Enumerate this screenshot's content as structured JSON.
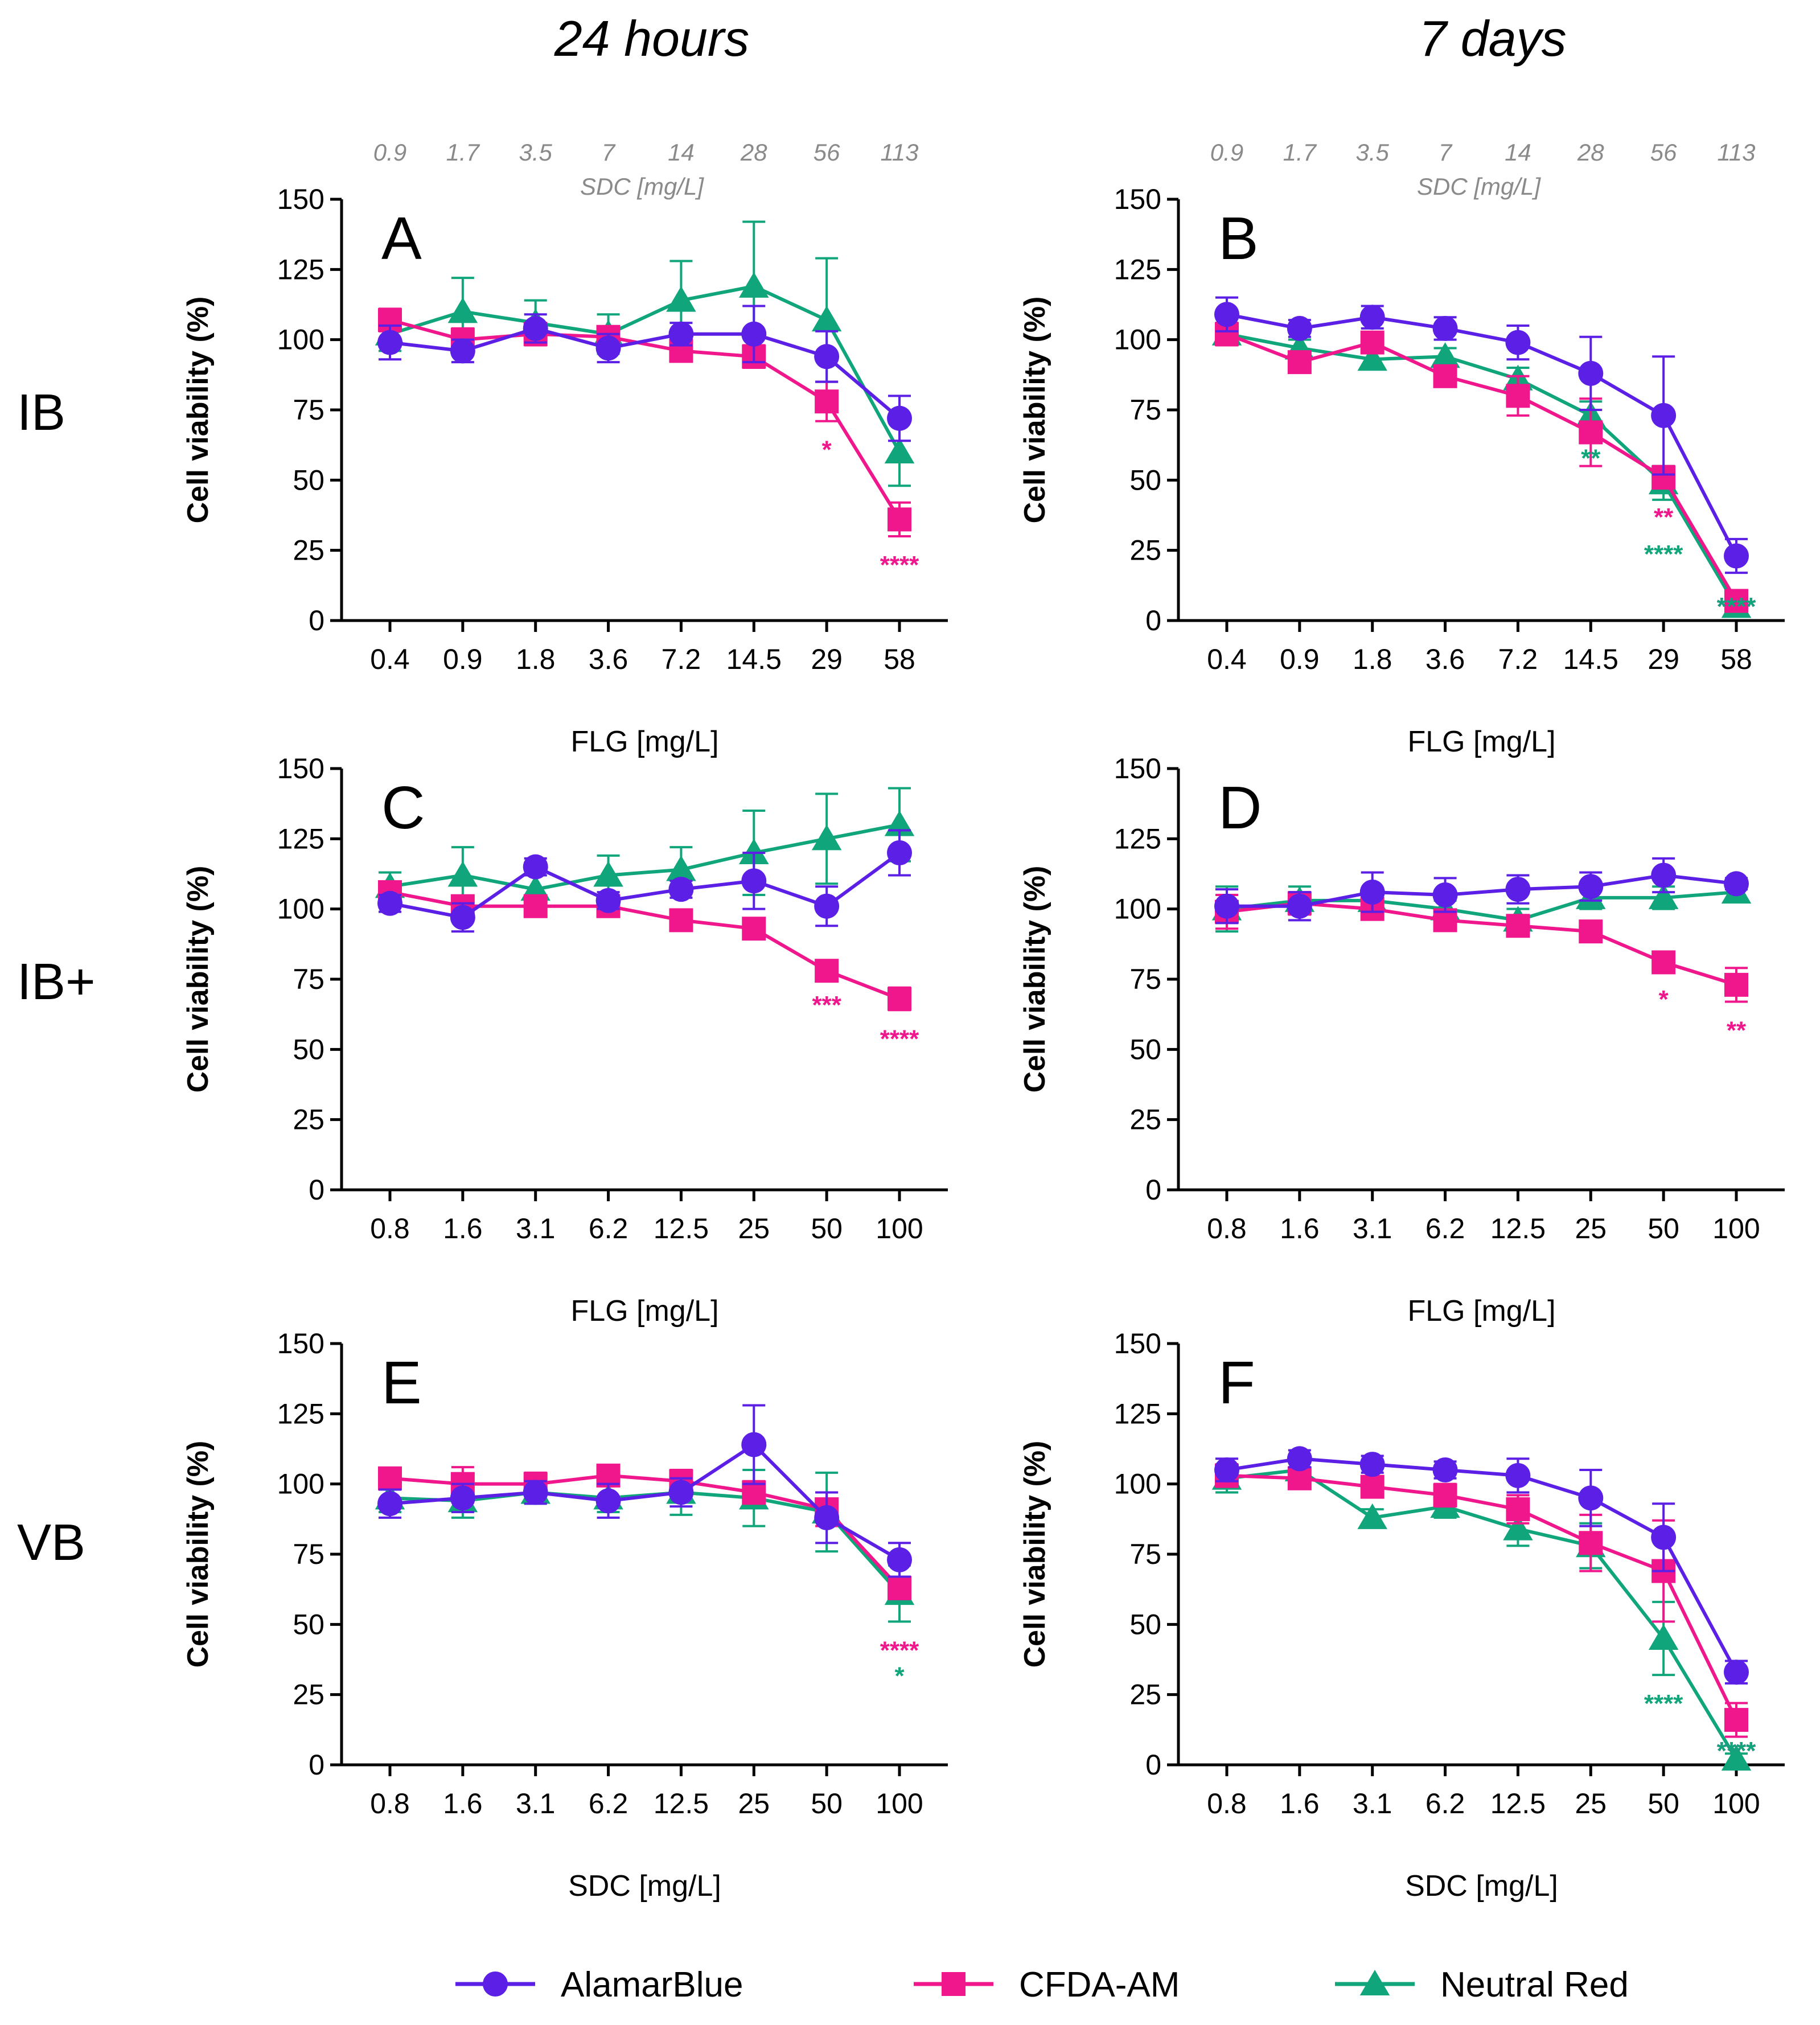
{
  "chart_data": {
    "type": "line",
    "column_titles": [
      "24 hours",
      "7 days"
    ],
    "row_labels": [
      "IB",
      "IB+",
      "VB"
    ],
    "legend": [
      {
        "name": "AlamarBlue",
        "color": "#5B1FE6",
        "marker": "circle"
      },
      {
        "name": "CFDA-AM",
        "color": "#F0168C",
        "marker": "square"
      },
      {
        "name": "Neutral Red",
        "color": "#10A57A",
        "marker": "triangle"
      }
    ],
    "panels": [
      {
        "letter": "A",
        "time": "24 hours",
        "cell": "IB",
        "ylabel": "Cell viability (%)",
        "ylim": [
          0,
          150
        ],
        "yticks": [
          0,
          25,
          50,
          75,
          100,
          125,
          150
        ],
        "xlabel": "FLG [mg/L]",
        "categories": [
          "0.4",
          "0.9",
          "1.8",
          "3.6",
          "7.2",
          "14.5",
          "29",
          "58"
        ],
        "secondary_axis": {
          "label": "SDC [mg/L]",
          "ticks": [
            "0.9",
            "1.7",
            "3.5",
            "7",
            "14",
            "28",
            "56",
            "113"
          ]
        },
        "series": [
          {
            "name": "AlamarBlue",
            "values": [
              99,
              96,
              104,
              97,
              102,
              102,
              94,
              72
            ],
            "err": [
              6,
              4,
              5,
              5,
              4,
              10,
              9,
              8
            ]
          },
          {
            "name": "CFDA-AM",
            "values": [
              107,
              100,
              102,
              101,
              96,
              94,
              78,
              36
            ],
            "err": [
              4,
              4,
              4,
              3,
              3,
              4,
              7,
              6
            ]
          },
          {
            "name": "Neutral Red",
            "values": [
              102,
              110,
              106,
              102,
              114,
              119,
              107,
              60
            ],
            "err": [
              6,
              12,
              8,
              7,
              14,
              23,
              22,
              12
            ]
          }
        ],
        "significance": [
          {
            "series": "CFDA-AM",
            "index": 6,
            "text": "*"
          },
          {
            "series": "CFDA-AM",
            "index": 7,
            "text": "****"
          }
        ]
      },
      {
        "letter": "B",
        "time": "7 days",
        "cell": "IB",
        "ylabel": "Cell viability (%)",
        "ylim": [
          0,
          150
        ],
        "yticks": [
          0,
          25,
          50,
          75,
          100,
          125,
          150
        ],
        "xlabel": "FLG [mg/L]",
        "categories": [
          "0.4",
          "0.9",
          "1.8",
          "3.6",
          "7.2",
          "14.5",
          "29",
          "58"
        ],
        "secondary_axis": {
          "label": "SDC [mg/L]",
          "ticks": [
            "0.9",
            "1.7",
            "3.5",
            "7",
            "14",
            "28",
            "56",
            "113"
          ]
        },
        "series": [
          {
            "name": "AlamarBlue",
            "values": [
              109,
              104,
              108,
              104,
              99,
              88,
              73,
              23
            ],
            "err": [
              6,
              3,
              4,
              4,
              6,
              13,
              21,
              6
            ]
          },
          {
            "name": "CFDA-AM",
            "values": [
              102,
              92,
              99,
              87,
              80,
              67,
              51,
              7
            ],
            "err": [
              4,
              3,
              3,
              3,
              7,
              12,
              4,
              2
            ]
          },
          {
            "name": "Neutral Red",
            "values": [
              102,
              97,
              93,
              94,
              86,
              73,
              49,
              5
            ],
            "err": [
              4,
              3,
              3,
              3,
              4,
              5,
              6,
              2
            ]
          }
        ],
        "significance": [
          {
            "series": "AlamarBlue",
            "index": 7,
            "text": "****"
          },
          {
            "series": "Neutral Red",
            "index": 5,
            "text": "**"
          },
          {
            "series": "CFDA-AM",
            "index": 6,
            "text": "**"
          },
          {
            "series": "Neutral Red",
            "index": 6,
            "text": "****"
          },
          {
            "series": "CFDA-AM",
            "index": 7,
            "text": "****"
          },
          {
            "series": "Neutral Red",
            "index": 7,
            "text": "****"
          }
        ]
      },
      {
        "letter": "C",
        "time": "24 hours",
        "cell": "IB+",
        "ylabel": "Cell viability (%)",
        "ylim": [
          0,
          150
        ],
        "yticks": [
          0,
          25,
          50,
          75,
          100,
          125,
          150
        ],
        "xlabel": "FLG [mg/L]",
        "categories": [
          "0.8",
          "1.6",
          "3.1",
          "6.2",
          "12.5",
          "25",
          "50",
          "100"
        ],
        "series": [
          {
            "name": "AlamarBlue",
            "values": [
              102,
              97,
              115,
              103,
              107,
              110,
              101,
              120
            ],
            "err": [
              3,
              5,
              3,
              3,
              3,
              10,
              7,
              8
            ]
          },
          {
            "name": "CFDA-AM",
            "values": [
              106,
              101,
              101,
              101,
              96,
              93,
              78,
              68
            ],
            "err": [
              3,
              3,
              3,
              3,
              2,
              2,
              2,
              4
            ]
          },
          {
            "name": "Neutral Red",
            "values": [
              108,
              112,
              107,
              112,
              114,
              120,
              125,
              130
            ],
            "err": [
              5,
              10,
              5,
              7,
              8,
              15,
              16,
              13
            ]
          }
        ],
        "significance": [
          {
            "series": "CFDA-AM",
            "index": 6,
            "text": "***"
          },
          {
            "series": "CFDA-AM",
            "index": 7,
            "text": "****"
          }
        ]
      },
      {
        "letter": "D",
        "time": "7 days",
        "cell": "IB+",
        "ylabel": "Cell viability (%)",
        "ylim": [
          0,
          150
        ],
        "yticks": [
          0,
          25,
          50,
          75,
          100,
          125,
          150
        ],
        "xlabel": "FLG [mg/L]",
        "categories": [
          "0.8",
          "1.6",
          "3.1",
          "6.2",
          "12.5",
          "25",
          "50",
          "100"
        ],
        "series": [
          {
            "name": "AlamarBlue",
            "values": [
              101,
              101,
              106,
              105,
              107,
              108,
              112,
              109
            ],
            "err": [
              6,
              5,
              7,
              6,
              5,
              5,
              6,
              2
            ]
          },
          {
            "name": "CFDA-AM",
            "values": [
              99,
              102,
              100,
              96,
              94,
              92,
              81,
              73
            ],
            "err": [
              6,
              4,
              3,
              3,
              3,
              2,
              3,
              6
            ]
          },
          {
            "name": "Neutral Red",
            "values": [
              100,
              103,
              103,
              100,
              96,
              104,
              104,
              106
            ],
            "err": [
              8,
              5,
              4,
              3,
              4,
              4,
              4,
              3
            ]
          }
        ],
        "significance": [
          {
            "series": "CFDA-AM",
            "index": 6,
            "text": "*"
          },
          {
            "series": "CFDA-AM",
            "index": 7,
            "text": "**"
          }
        ]
      },
      {
        "letter": "E",
        "time": "24 hours",
        "cell": "VB",
        "ylabel": "Cell viability (%)",
        "ylim": [
          0,
          150
        ],
        "yticks": [
          0,
          25,
          50,
          75,
          100,
          125,
          150
        ],
        "xlabel": "SDC [mg/L]",
        "categories": [
          "0.8",
          "1.6",
          "3.1",
          "6.2",
          "12.5",
          "25",
          "50",
          "100"
        ],
        "series": [
          {
            "name": "AlamarBlue",
            "values": [
              93,
              95,
              97,
              94,
              97,
              114,
              88,
              73
            ],
            "err": [
              5,
              5,
              4,
              6,
              5,
              14,
              9,
              6
            ]
          },
          {
            "name": "CFDA-AM",
            "values": [
              102,
              100,
              100,
              103,
              101,
              97,
              91,
              63
            ],
            "err": [
              3,
              6,
              4,
              3,
              4,
              4,
              6,
              4
            ]
          },
          {
            "name": "Neutral Red",
            "values": [
              95,
              94,
              97,
              95,
              97,
              95,
              90,
              61
            ],
            "err": [
              5,
              6,
              4,
              5,
              8,
              10,
              14,
              10
            ]
          }
        ],
        "significance": [
          {
            "series": "CFDA-AM",
            "index": 7,
            "text": "****"
          },
          {
            "series": "Neutral Red",
            "index": 7,
            "text": "*"
          }
        ]
      },
      {
        "letter": "F",
        "time": "7 days",
        "cell": "VB",
        "ylabel": "Cell viability (%)",
        "ylim": [
          0,
          150
        ],
        "yticks": [
          0,
          25,
          50,
          75,
          100,
          125,
          150
        ],
        "xlabel": "SDC [mg/L]",
        "categories": [
          "0.8",
          "1.6",
          "3.1",
          "6.2",
          "12.5",
          "25",
          "50",
          "100"
        ],
        "series": [
          {
            "name": "AlamarBlue",
            "values": [
              105,
              109,
              107,
              105,
              103,
              95,
              81,
              33
            ],
            "err": [
              4,
              3,
              3,
              3,
              6,
              10,
              12,
              4
            ]
          },
          {
            "name": "CFDA-AM",
            "values": [
              103,
              102,
              99,
              96,
              91,
              79,
              69,
              16
            ],
            "err": [
              4,
              3,
              3,
              4,
              5,
              10,
              18,
              6
            ]
          },
          {
            "name": "Neutral Red",
            "values": [
              102,
              105,
              88,
              92,
              84,
              78,
              45,
              2
            ],
            "err": [
              5,
              4,
              3,
              4,
              6,
              8,
              13,
              2
            ]
          }
        ],
        "significance": [
          {
            "series": "AlamarBlue",
            "index": 7,
            "text": "****"
          },
          {
            "series": "CFDA-AM",
            "index": 7,
            "text": "****"
          },
          {
            "series": "Neutral Red",
            "index": 7,
            "text": "****"
          },
          {
            "series": "Neutral Red",
            "index": 6,
            "text": "****"
          }
        ]
      }
    ]
  }
}
